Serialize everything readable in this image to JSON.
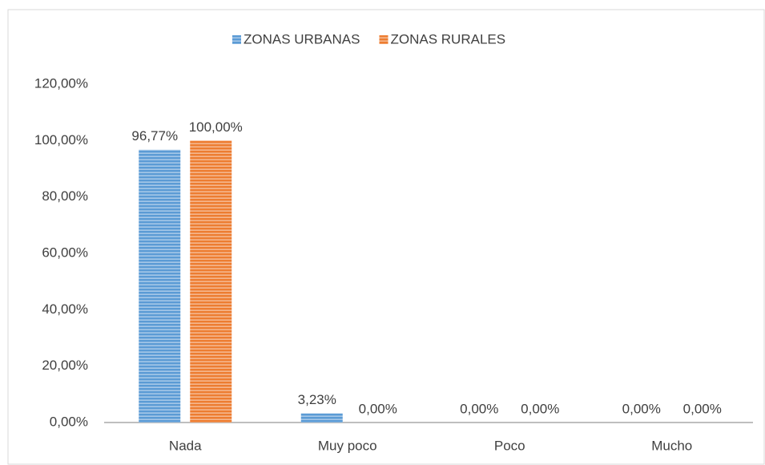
{
  "chart_data": {
    "type": "bar",
    "categories": [
      "Nada",
      "Muy poco",
      "Poco",
      "Mucho"
    ],
    "series": [
      {
        "name": "ZONAS URBANAS",
        "color": "#5b9bd5",
        "values": [
          96.77,
          3.23,
          0,
          0
        ],
        "value_labels": [
          "96,77%",
          "3,23%",
          "0,00%",
          "0,00%"
        ]
      },
      {
        "name": "ZONAS RURALES",
        "color": "#ed7d31",
        "values": [
          100,
          0,
          0,
          0
        ],
        "value_labels": [
          "100,00%",
          "0,00%",
          "0,00%",
          "0,00%"
        ]
      }
    ],
    "ylim": [
      0,
      120
    ],
    "yticks": [
      {
        "value": 0,
        "label": "0,00%"
      },
      {
        "value": 20,
        "label": "20,00%"
      },
      {
        "value": 40,
        "label": "40,00%"
      },
      {
        "value": 60,
        "label": "60,00%"
      },
      {
        "value": 80,
        "label": "80,00%"
      },
      {
        "value": 100,
        "label": "100,00%"
      },
      {
        "value": 120,
        "label": "120,00%"
      }
    ],
    "legend": "top"
  }
}
